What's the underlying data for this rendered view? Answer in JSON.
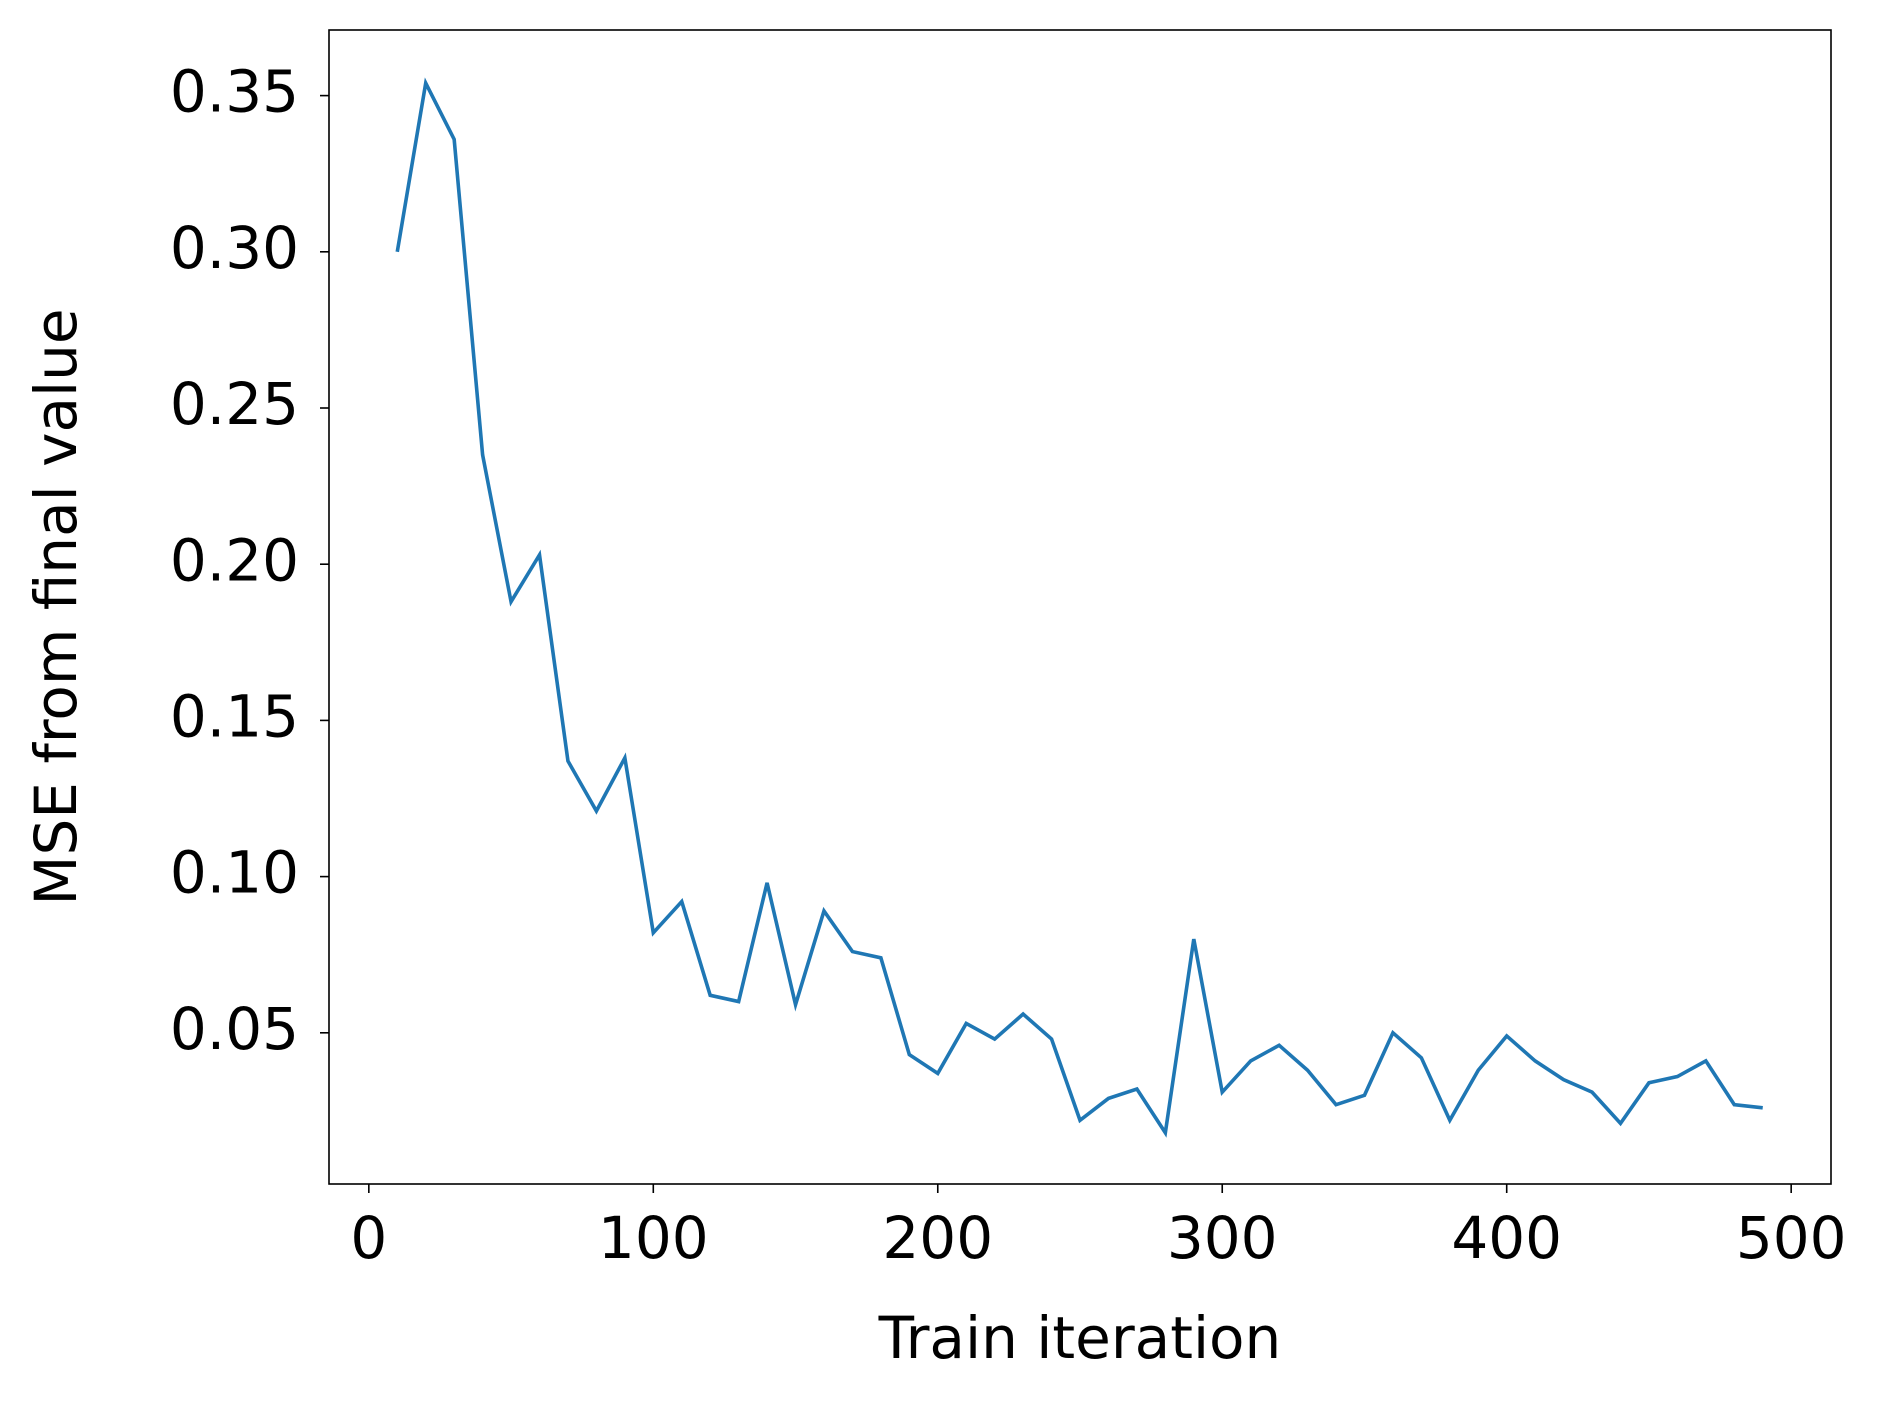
{
  "chart_data": {
    "type": "line",
    "xlabel": "Train iteration",
    "ylabel": "MSE from final value",
    "x": [
      10,
      20,
      30,
      40,
      50,
      60,
      70,
      80,
      90,
      100,
      110,
      120,
      130,
      140,
      150,
      160,
      170,
      180,
      190,
      200,
      210,
      220,
      230,
      240,
      250,
      260,
      270,
      280,
      290,
      300,
      310,
      320,
      330,
      340,
      350,
      360,
      370,
      380,
      390,
      400,
      410,
      420,
      430,
      440,
      450,
      460,
      470,
      480,
      490
    ],
    "series": [
      {
        "color": "#1f77b4",
        "values": [
          0.3,
          0.354,
          0.336,
          0.235,
          0.188,
          0.203,
          0.137,
          0.121,
          0.138,
          0.082,
          0.092,
          0.062,
          0.06,
          0.098,
          0.059,
          0.089,
          0.076,
          0.074,
          0.043,
          0.037,
          0.053,
          0.048,
          0.056,
          0.048,
          0.022,
          0.029,
          0.032,
          0.018,
          0.08,
          0.031,
          0.041,
          0.046,
          0.038,
          0.027,
          0.03,
          0.05,
          0.042,
          0.022,
          0.038,
          0.049,
          0.041,
          0.035,
          0.031,
          0.021,
          0.034,
          0.036,
          0.041,
          0.027,
          0.026
        ]
      }
    ],
    "xlim": [
      -14,
      514
    ],
    "ylim": [
      0.0016,
      0.371
    ],
    "xticks": [
      0,
      100,
      200,
      300,
      400,
      500
    ],
    "yticks": [
      0.05,
      {
        "value": 0.1,
        "label": "0.10"
      },
      0.15,
      {
        "value": 0.2,
        "label": "0.20"
      },
      0.25,
      {
        "value": 0.3,
        "label": "0.30"
      },
      0.35
    ],
    "grid": false
  }
}
